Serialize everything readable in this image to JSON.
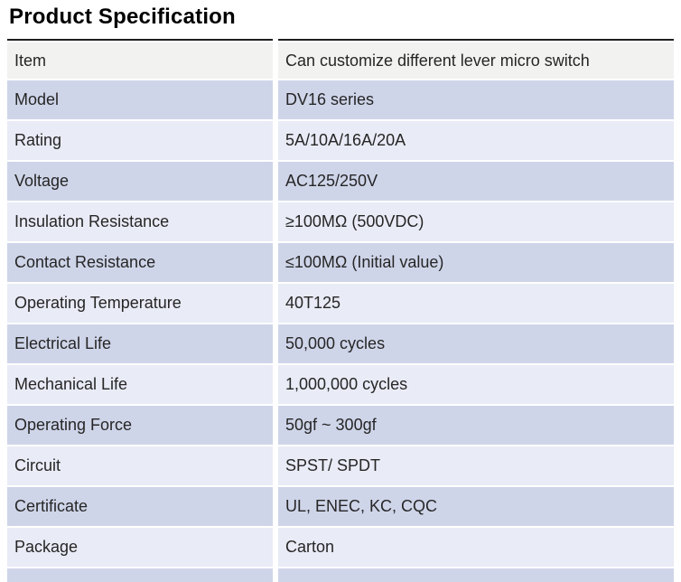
{
  "title": "Product Specification",
  "table": {
    "columns": [
      "label",
      "value"
    ],
    "rows": [
      {
        "label": "Item",
        "value": "Can customize different lever micro switch"
      },
      {
        "label": "Model",
        "value": "DV16 series"
      },
      {
        "label": "Rating",
        "value": "5A/10A/16A/20A"
      },
      {
        "label": "Voltage",
        "value": "AC125/250V"
      },
      {
        "label": "Insulation Resistance",
        "value": "≥100MΩ (500VDC)"
      },
      {
        "label": "Contact Resistance",
        "value": "≤100MΩ (Initial value)"
      },
      {
        "label": "Operating Temperature",
        "value": "40T125"
      },
      {
        "label": "Electrical Life",
        "value": "50,000 cycles"
      },
      {
        "label": "Mechanical Life",
        "value": "1,000,000 cycles"
      },
      {
        "label": "Operating Force",
        "value": "50gf ~ 300gf"
      },
      {
        "label": "Circuit",
        "value": "SPST/ SPDT"
      },
      {
        "label": "Certificate",
        "value": "UL, ENEC, KC, CQC"
      },
      {
        "label": "Package",
        "value": "Carton"
      }
    ]
  },
  "colors": {
    "row-item-bg": "#f2f2f1",
    "row-dark-bg": "#cfd5e9",
    "row-light-bg": "#e9ebf6",
    "rule-color": "#1f1f1f",
    "text-color": "#262626",
    "title-color": "#000000"
  }
}
